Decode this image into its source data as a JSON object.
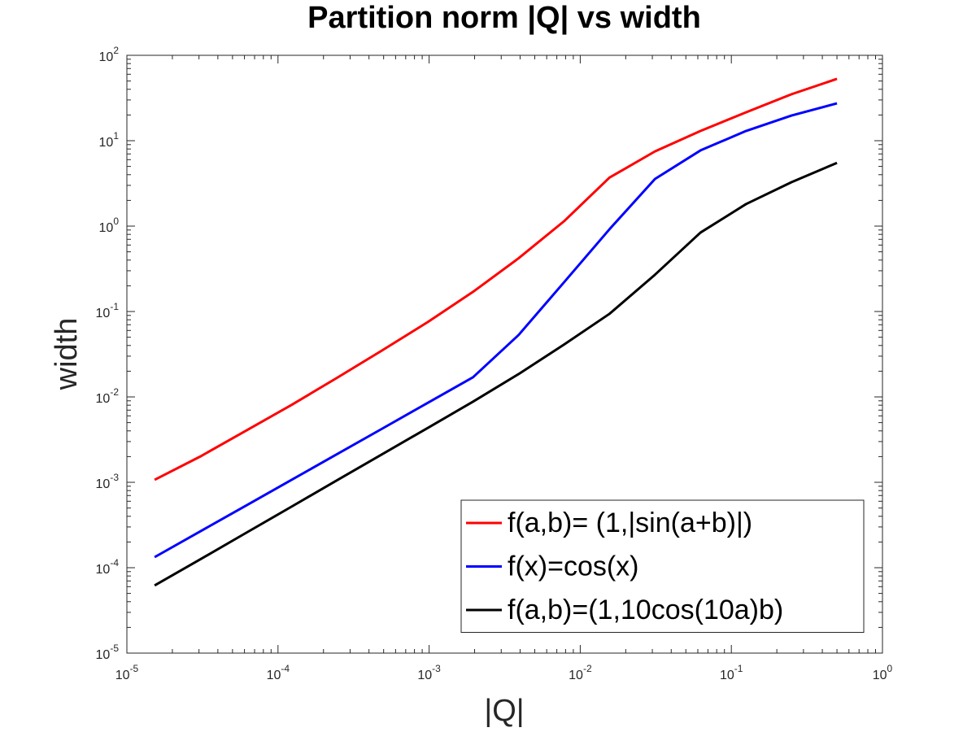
{
  "chart_data": {
    "type": "line",
    "title": "Partition norm |Q| vs width",
    "x_label": "|Q|",
    "y_label": "width",
    "log_x": true,
    "log_y": true,
    "legend": "lower right",
    "x": [
      0.5,
      0.25,
      0.125,
      0.0625,
      0.03125,
      0.015625,
      0.0078125,
      0.00390625,
      0.001953125,
      0.0009765625,
      0.00048828125,
      0.000244140625,
      0.0001220703125,
      6.103515625e-05,
      3.0517578125e-05,
      1.52587890625e-05
    ],
    "series": [
      {
        "name": "f(a,b)= (1,|sin(a+b)|)",
        "color": "#ff0000",
        "values": [
          53,
          35,
          21.5,
          13,
          7.5,
          3.7,
          1.14,
          0.42,
          0.17,
          0.075,
          0.035,
          0.0166,
          0.008,
          0.004,
          0.002,
          0.00107
        ]
      },
      {
        "name": "f(x)=cos(x)",
        "color": "#0000ff",
        "values": [
          27.4,
          19.7,
          13,
          7.7,
          3.57,
          0.92,
          0.22,
          0.053,
          0.017,
          0.0085,
          0.00424,
          0.00212,
          0.00106,
          0.00053,
          0.000266,
          0.000133
        ]
      },
      {
        "name": "f(a,b)=(1,10cos(10a)b)",
        "color": "#000000",
        "values": [
          5.5,
          3.27,
          1.81,
          0.84,
          0.27,
          0.094,
          0.041,
          0.0185,
          0.0088,
          0.00432,
          0.00213,
          0.00105,
          0.000515,
          0.000254,
          0.000125,
          6.2e-05
        ]
      }
    ],
    "xlim": [
      1e-05,
      1
    ],
    "xticks": [
      {
        "value": 1e-05,
        "label": "10^-5"
      },
      {
        "value": 0.0001,
        "label": "10^-4"
      },
      {
        "value": 0.001,
        "label": "10^-3"
      },
      {
        "value": 0.01,
        "label": "10^-2"
      },
      {
        "value": 0.1,
        "label": "10^-1"
      },
      {
        "value": 1,
        "label": "10^0"
      }
    ],
    "ylim": [
      1e-05,
      100
    ],
    "yticks": [
      {
        "value": 1e-05,
        "label": "10^-5"
      },
      {
        "value": 0.0001,
        "label": "10^-4"
      },
      {
        "value": 0.001,
        "label": "10^-3"
      },
      {
        "value": 0.01,
        "label": "10^-2"
      },
      {
        "value": 0.1,
        "label": "10^-1"
      },
      {
        "value": 1,
        "label": "10^0"
      },
      {
        "value": 10,
        "label": "10^1"
      },
      {
        "value": 100,
        "label": "10^2"
      }
    ]
  }
}
